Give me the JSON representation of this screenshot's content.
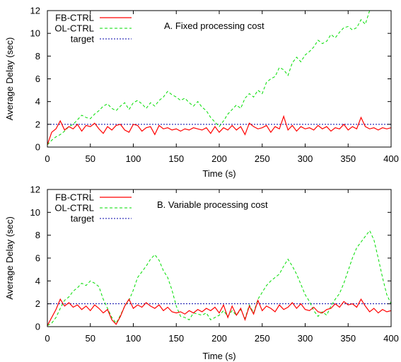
{
  "chart_data": [
    {
      "type": "line",
      "annotation": "A. Fixed processing cost",
      "xlabel": "Time (s)",
      "ylabel": "Average Delay (sec)",
      "xlim": [
        0,
        400
      ],
      "ylim": [
        0,
        12
      ],
      "xticks": [
        0,
        50,
        100,
        150,
        200,
        250,
        300,
        350,
        400
      ],
      "yticks": [
        0,
        2,
        4,
        6,
        8,
        10,
        12
      ],
      "grid": false,
      "legend_position": "top-left",
      "series": [
        {
          "name": "FB-CTRL",
          "color": "#ff0000",
          "style": "solid",
          "x": [
            0,
            5,
            10,
            15,
            20,
            25,
            30,
            35,
            40,
            45,
            50,
            55,
            60,
            65,
            70,
            75,
            80,
            85,
            90,
            95,
            100,
            105,
            110,
            115,
            120,
            125,
            130,
            135,
            140,
            145,
            150,
            155,
            160,
            165,
            170,
            175,
            180,
            185,
            190,
            195,
            200,
            205,
            210,
            215,
            220,
            225,
            230,
            235,
            240,
            245,
            250,
            255,
            260,
            265,
            270,
            275,
            280,
            285,
            290,
            295,
            300,
            305,
            310,
            315,
            320,
            325,
            330,
            335,
            340,
            345,
            350,
            355,
            360,
            365,
            370,
            375,
            380,
            385,
            390,
            395,
            400
          ],
          "y": [
            0.2,
            1.3,
            1.6,
            2.3,
            1.5,
            1.8,
            1.6,
            2.0,
            1.4,
            1.9,
            1.8,
            2.1,
            1.6,
            1.2,
            1.8,
            1.5,
            1.9,
            2.0,
            1.5,
            1.3,
            2.0,
            1.9,
            1.4,
            1.7,
            1.8,
            1.1,
            1.9,
            1.6,
            1.7,
            1.5,
            1.6,
            1.4,
            1.6,
            1.5,
            1.7,
            1.6,
            1.5,
            1.7,
            1.2,
            1.8,
            1.3,
            1.7,
            1.5,
            1.9,
            1.5,
            1.8,
            1.1,
            2.1,
            1.8,
            1.6,
            1.7,
            1.9,
            1.3,
            1.8,
            1.6,
            2.7,
            1.5,
            1.9,
            1.4,
            1.8,
            1.6,
            1.7,
            1.5,
            1.9,
            1.6,
            1.8,
            1.4,
            1.7,
            1.6,
            2.0,
            1.5,
            1.8,
            1.6,
            2.6,
            1.8,
            1.6,
            1.7,
            1.5,
            1.7,
            1.6,
            1.7
          ]
        },
        {
          "name": "OL-CTRL",
          "color": "#00dd00",
          "style": "dashed",
          "x": [
            0,
            5,
            10,
            15,
            20,
            25,
            30,
            35,
            40,
            45,
            50,
            55,
            60,
            65,
            70,
            75,
            80,
            85,
            90,
            95,
            100,
            105,
            110,
            115,
            120,
            125,
            130,
            135,
            140,
            145,
            150,
            155,
            160,
            165,
            170,
            175,
            180,
            185,
            190,
            195,
            200,
            205,
            210,
            215,
            220,
            225,
            230,
            235,
            240,
            245,
            250,
            255,
            260,
            265,
            270,
            275,
            280,
            285,
            290,
            295,
            300,
            305,
            310,
            315,
            320,
            325,
            330,
            335,
            340,
            345,
            350,
            355,
            360,
            365,
            370,
            375
          ],
          "y": [
            0.2,
            0.6,
            0.9,
            1.1,
            1.4,
            1.8,
            2.0,
            2.4,
            2.8,
            2.6,
            2.5,
            2.9,
            3.2,
            3.6,
            3.8,
            3.4,
            3.2,
            3.6,
            3.9,
            3.3,
            3.9,
            4.1,
            3.8,
            3.4,
            3.9,
            3.6,
            4.1,
            4.4,
            4.9,
            4.6,
            4.4,
            4.1,
            4.3,
            3.9,
            3.6,
            4.0,
            3.5,
            3.2,
            2.6,
            2.2,
            1.8,
            2.3,
            2.9,
            3.3,
            3.7,
            3.4,
            4.3,
            4.7,
            4.4,
            5.0,
            4.7,
            5.7,
            6.0,
            6.2,
            7.0,
            6.8,
            6.3,
            7.4,
            7.9,
            7.5,
            8.1,
            8.4,
            8.8,
            9.4,
            9.1,
            9.3,
            9.9,
            9.6,
            10.1,
            10.5,
            10.6,
            10.3,
            10.5,
            11.2,
            10.8,
            12.0
          ]
        },
        {
          "name": "target",
          "color": "#0000aa",
          "style": "dotted",
          "x": [
            0,
            400
          ],
          "y": [
            2,
            2
          ]
        }
      ]
    },
    {
      "type": "line",
      "annotation": "B. Variable processing cost",
      "xlabel": "Time (s)",
      "ylabel": "Average Delay (sec)",
      "xlim": [
        0,
        400
      ],
      "ylim": [
        0,
        12
      ],
      "xticks": [
        0,
        50,
        100,
        150,
        200,
        250,
        300,
        350,
        400
      ],
      "yticks": [
        0,
        2,
        4,
        6,
        8,
        10,
        12
      ],
      "grid": false,
      "legend_position": "top-left",
      "series": [
        {
          "name": "FB-CTRL",
          "color": "#ff0000",
          "style": "solid",
          "x": [
            0,
            5,
            10,
            15,
            20,
            25,
            30,
            35,
            40,
            45,
            50,
            55,
            60,
            65,
            70,
            75,
            80,
            85,
            90,
            95,
            100,
            105,
            110,
            115,
            120,
            125,
            130,
            135,
            140,
            145,
            150,
            155,
            160,
            165,
            170,
            175,
            180,
            185,
            190,
            195,
            200,
            205,
            210,
            215,
            220,
            225,
            230,
            235,
            240,
            245,
            250,
            255,
            260,
            265,
            270,
            275,
            280,
            285,
            290,
            295,
            300,
            305,
            310,
            315,
            320,
            325,
            330,
            335,
            340,
            345,
            350,
            355,
            360,
            365,
            370,
            375,
            380,
            385,
            390,
            395,
            400
          ],
          "y": [
            0.1,
            0.8,
            1.5,
            2.4,
            1.8,
            2.1,
            1.7,
            1.9,
            1.5,
            1.8,
            1.4,
            1.9,
            1.6,
            1.2,
            1.5,
            0.6,
            0.2,
            0.9,
            1.8,
            2.4,
            1.6,
            1.9,
            1.7,
            2.1,
            1.8,
            1.6,
            1.9,
            1.4,
            1.7,
            1.3,
            1.2,
            1.3,
            1.1,
            1.4,
            1.2,
            1.5,
            1.3,
            1.6,
            1.4,
            1.7,
            1.2,
            1.9,
            0.8,
            1.8,
            1.0,
            1.6,
            0.6,
            1.8,
            1.1,
            2.3,
            1.4,
            1.8,
            1.6,
            1.3,
            1.9,
            1.5,
            1.7,
            2.1,
            1.6,
            2.0,
            1.5,
            1.4,
            1.7,
            1.3,
            1.2,
            1.5,
            1.6,
            2.0,
            1.7,
            2.2,
            1.9,
            2.0,
            1.7,
            2.4,
            1.8,
            1.3,
            1.6,
            1.2,
            1.5,
            1.3,
            1.4
          ]
        },
        {
          "name": "OL-CTRL",
          "color": "#00dd00",
          "style": "dashed",
          "x": [
            0,
            5,
            10,
            15,
            20,
            25,
            30,
            35,
            40,
            45,
            50,
            55,
            60,
            65,
            70,
            75,
            80,
            85,
            90,
            95,
            100,
            105,
            110,
            115,
            120,
            125,
            130,
            135,
            140,
            145,
            150,
            155,
            160,
            165,
            170,
            175,
            180,
            185,
            190,
            195,
            200,
            205,
            210,
            215,
            220,
            225,
            230,
            235,
            240,
            245,
            250,
            255,
            260,
            265,
            270,
            275,
            280,
            285,
            290,
            295,
            300,
            305,
            310,
            315,
            320,
            325,
            330,
            335,
            340,
            345,
            350,
            355,
            360,
            365,
            370,
            375,
            380,
            385,
            390,
            395,
            400
          ],
          "y": [
            0.1,
            0.3,
            0.8,
            1.6,
            2.3,
            2.6,
            3.1,
            3.4,
            3.8,
            3.6,
            4.0,
            3.8,
            3.5,
            2.4,
            1.6,
            0.8,
            0.3,
            1.0,
            1.8,
            2.3,
            3.2,
            4.3,
            4.8,
            5.3,
            5.9,
            6.3,
            5.8,
            4.9,
            4.3,
            3.2,
            1.8,
            0.9,
            0.8,
            0.6,
            1.2,
            1.1,
            1.0,
            1.2,
            0.6,
            0.8,
            1.0,
            1.4,
            0.9,
            1.4,
            1.0,
            1.5,
            0.7,
            1.9,
            1.2,
            2.4,
            3.0,
            3.6,
            4.0,
            4.3,
            4.6,
            5.3,
            5.9,
            5.3,
            4.6,
            3.7,
            2.8,
            2.2,
            1.4,
            0.9,
            1.3,
            1.0,
            1.8,
            2.4,
            2.9,
            3.8,
            4.9,
            6.0,
            6.9,
            7.4,
            7.9,
            8.4,
            7.6,
            6.0,
            4.3,
            2.8,
            2.0
          ]
        },
        {
          "name": "target",
          "color": "#0000aa",
          "style": "dotted",
          "x": [
            0,
            400
          ],
          "y": [
            2,
            2
          ]
        }
      ]
    }
  ]
}
